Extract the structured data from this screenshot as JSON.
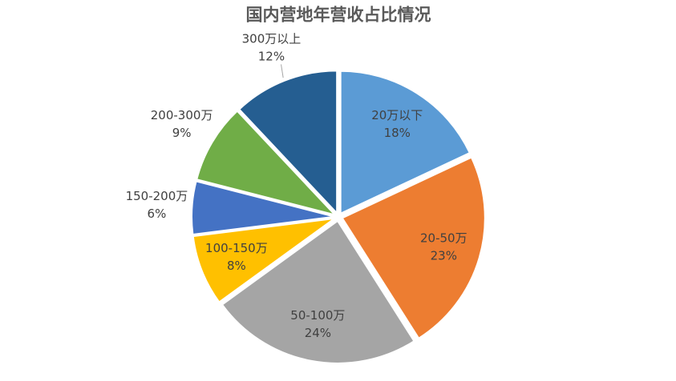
{
  "chart_data": {
    "type": "pie",
    "title": "国内营地年营收占比情况",
    "categories": [
      "20万以下",
      "20-50万",
      "50-100万",
      "100-150万",
      "150-200万",
      "200-300万",
      "300万以上"
    ],
    "values": [
      18,
      23,
      24,
      8,
      6,
      9,
      12
    ],
    "value_labels": [
      "18%",
      "23%",
      "24%",
      "8%",
      "6%",
      "9%",
      "12%"
    ],
    "colors": [
      "#5b9bd5",
      "#ed7d31",
      "#a5a5a5",
      "#ffc000",
      "#4472c4",
      "#70ad47",
      "#255e91"
    ]
  }
}
